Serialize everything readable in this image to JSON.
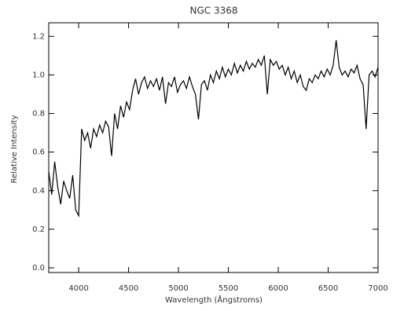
{
  "chart_data": {
    "type": "line",
    "title": "NGC 3368",
    "x_label": "Wavelength (Ångstroms)",
    "y_label": "Relative Intensity",
    "color": "#000000",
    "x": [
      3700,
      3730,
      3760,
      3790,
      3820,
      3850,
      3880,
      3910,
      3940,
      3970,
      4000,
      4030,
      4060,
      4090,
      4120,
      4150,
      4180,
      4210,
      4240,
      4270,
      4300,
      4330,
      4360,
      4390,
      4420,
      4450,
      4480,
      4510,
      4540,
      4570,
      4600,
      4630,
      4660,
      4690,
      4720,
      4750,
      4780,
      4810,
      4840,
      4870,
      4900,
      4930,
      4960,
      4990,
      5020,
      5050,
      5080,
      5110,
      5140,
      5170,
      5200,
      5230,
      5260,
      5290,
      5320,
      5350,
      5380,
      5410,
      5440,
      5470,
      5500,
      5530,
      5560,
      5590,
      5620,
      5650,
      5680,
      5710,
      5740,
      5770,
      5800,
      5830,
      5860,
      5890,
      5920,
      5950,
      5980,
      6010,
      6040,
      6070,
      6100,
      6130,
      6160,
      6190,
      6220,
      6250,
      6280,
      6310,
      6340,
      6370,
      6400,
      6430,
      6460,
      6490,
      6520,
      6550,
      6580,
      6610,
      6640,
      6670,
      6700,
      6730,
      6760,
      6790,
      6820,
      6850,
      6880,
      6910,
      6940,
      6970,
      7000
    ],
    "values": [
      0.5,
      0.38,
      0.55,
      0.42,
      0.33,
      0.45,
      0.4,
      0.36,
      0.48,
      0.3,
      0.27,
      0.72,
      0.66,
      0.7,
      0.62,
      0.72,
      0.68,
      0.74,
      0.7,
      0.76,
      0.73,
      0.58,
      0.8,
      0.72,
      0.84,
      0.78,
      0.86,
      0.82,
      0.92,
      0.98,
      0.9,
      0.96,
      0.99,
      0.93,
      0.97,
      0.94,
      0.98,
      0.92,
      0.99,
      0.85,
      0.96,
      0.94,
      0.99,
      0.91,
      0.95,
      0.97,
      0.93,
      0.99,
      0.94,
      0.9,
      0.77,
      0.95,
      0.97,
      0.92,
      1.0,
      0.96,
      1.02,
      0.98,
      1.04,
      0.99,
      1.03,
      1.0,
      1.06,
      1.01,
      1.05,
      1.02,
      1.07,
      1.03,
      1.06,
      1.04,
      1.08,
      1.05,
      1.1,
      0.9,
      1.08,
      1.05,
      1.07,
      1.03,
      1.05,
      1.0,
      1.04,
      0.98,
      1.02,
      0.96,
      1.0,
      0.94,
      0.92,
      0.98,
      0.96,
      1.0,
      0.98,
      1.02,
      0.99,
      1.03,
      1.0,
      1.05,
      1.18,
      1.04,
      1.0,
      1.02,
      0.99,
      1.03,
      1.01,
      1.05,
      0.98,
      0.95,
      0.72,
      1.0,
      1.02,
      0.99,
      1.04
    ],
    "xlim": [
      3700,
      7000
    ],
    "xticks": [
      4000,
      4500,
      5000,
      5500,
      6000,
      6500,
      7000
    ],
    "ylim": [
      0,
      1.25
    ],
    "yticks": [
      {
        "value": 0,
        "label": "0.0"
      },
      0.2,
      0.4,
      0.6,
      0.8,
      {
        "value": 1,
        "label": "1.0"
      },
      1.2
    ]
  }
}
